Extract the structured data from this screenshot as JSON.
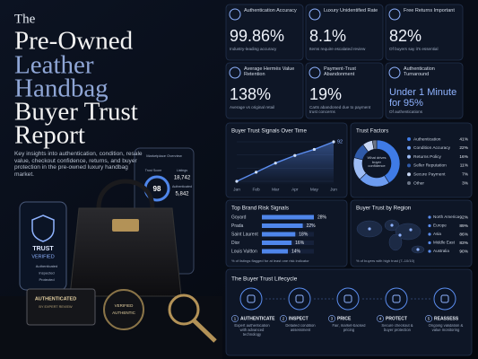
{
  "title_lines": [
    "The",
    "Pre-Owned",
    "Leather",
    "Handbag",
    "Buyer Trust",
    "Report"
  ],
  "description": "Key insights into authentication, condition, resale value, checkout confidence, returns, and buyer protection in the pre-owned luxury handbag market.",
  "illustration": {
    "phone": [
      "TRUST",
      "VERIFIED",
      "Authenticated",
      "Inspected",
      "Protected"
    ],
    "tablet": [
      "Marketplace Overview",
      "Trust Score",
      "98",
      "Listings",
      "18,742",
      "Authenticated",
      "5,842"
    ],
    "card": [
      "AUTHENTICATED",
      "BY EXPERT REVIEW"
    ],
    "tag": [
      "VERIFIED",
      "AUTHENTIC"
    ]
  },
  "kpis": [
    {
      "label": "Authentication Accuracy",
      "value": "99.86%",
      "sub": "Industry-leading accuracy"
    },
    {
      "label": "Luxury Unidentified Rate",
      "value": "8.1%",
      "sub": "Items require escalated review"
    },
    {
      "label": "Free Returns Important",
      "value": "82%",
      "sub": "Of buyers say it's essential"
    },
    {
      "label": "Average Hermès Value Retention",
      "value": "138%",
      "sub": "Average vs original retail"
    },
    {
      "label": "Payment-Trust Abandonment",
      "value": "19%",
      "sub": "Carts abandoned due to payment trust concerns"
    },
    {
      "label": "Authentication Turnaround",
      "value": "Under 1 Minute",
      "value_detail": "for 95%",
      "sub": "Of authentications"
    }
  ],
  "trend_chart": {
    "type": "line",
    "title": "Buyer Trust Signals Over Time",
    "categories": [
      "Jan",
      "Feb",
      "Mar",
      "Apr",
      "May",
      "Jun"
    ],
    "values": [
      66,
      72,
      78,
      83,
      87,
      92
    ],
    "color": "#5b8def"
  },
  "trust_factors": {
    "type": "pie",
    "title": "Trust Factors",
    "center_label": "What drives buyer confidence",
    "categories": [
      "Authentication",
      "Condition Accuracy",
      "Returns Policy",
      "Seller Reputation",
      "Secure Payment",
      "Other"
    ],
    "values": [
      41,
      22,
      16,
      11,
      7,
      3
    ],
    "value_labels": [
      "41%",
      "22%",
      "16%",
      "11%",
      "7%",
      "3%"
    ],
    "colors": [
      "#3f7be6",
      "#6d9cf0",
      "#9dbcf5",
      "#2f5aa8",
      "#c9d8f5",
      "#6b7486"
    ]
  },
  "brand_risk": {
    "type": "bar",
    "title": "Top Brand Risk Signals",
    "categories": [
      "Goyard",
      "Prada",
      "Saint Laurent",
      "Dior",
      "Louis Vuitton"
    ],
    "values": [
      28,
      22,
      18,
      16,
      14
    ],
    "value_labels": [
      "28%",
      "22%",
      "18%",
      "16%",
      "14%"
    ],
    "color": "#4f86ea",
    "note": "% of listings flagged for at least one risk indicator"
  },
  "regions": {
    "title": "Buyer Trust by Region",
    "items": [
      {
        "name": "North America",
        "value": "92%"
      },
      {
        "name": "Europe",
        "value": "89%"
      },
      {
        "name": "Asia",
        "value": "86%"
      },
      {
        "name": "Middle East",
        "value": "83%"
      },
      {
        "name": "Australia",
        "value": "90%"
      }
    ],
    "note": "% of buyers with high trust (7–10/10)"
  },
  "lifecycle": {
    "title": "The Buyer Trust Lifecycle",
    "steps": [
      {
        "number": "1",
        "name": "AUTHENTICATE",
        "desc": "Expert authentication with advanced technology"
      },
      {
        "number": "2",
        "name": "INSPECT",
        "desc": "Detailed condition assessment"
      },
      {
        "number": "3",
        "name": "PRICE",
        "desc": "Fair, market-backed pricing"
      },
      {
        "number": "4",
        "name": "PROTECT",
        "desc": "Secure checkout & buyer protection"
      },
      {
        "number": "5",
        "name": "REASSESS",
        "desc": "Ongoing validation & value monitoring"
      }
    ]
  }
}
